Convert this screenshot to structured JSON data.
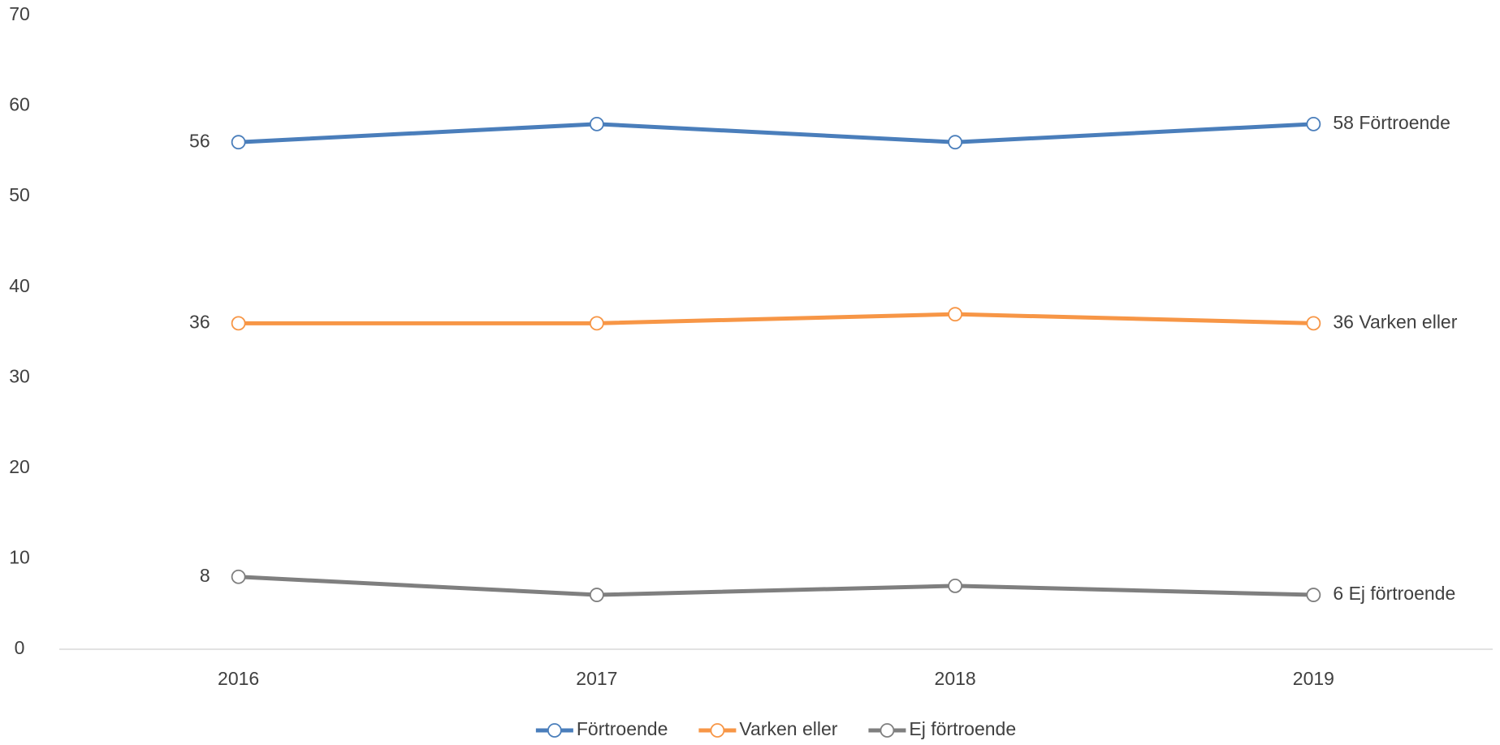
{
  "chart_data": {
    "type": "line",
    "categories": [
      "2016",
      "2017",
      "2018",
      "2019"
    ],
    "series": [
      {
        "name": "Förtroende",
        "color": "#4a7ebb",
        "values": [
          56,
          58,
          56,
          58
        ]
      },
      {
        "name": "Varken eller",
        "color": "#f79646",
        "values": [
          36,
          36,
          37,
          36
        ]
      },
      {
        "name": "Ej förtroende",
        "color": "#7f7f7f",
        "values": [
          8,
          6,
          7,
          6
        ]
      }
    ],
    "ylim": [
      0,
      70
    ],
    "yticks": [
      0,
      10,
      20,
      30,
      40,
      50,
      60,
      70
    ],
    "grid": false,
    "legend": "bottom"
  }
}
